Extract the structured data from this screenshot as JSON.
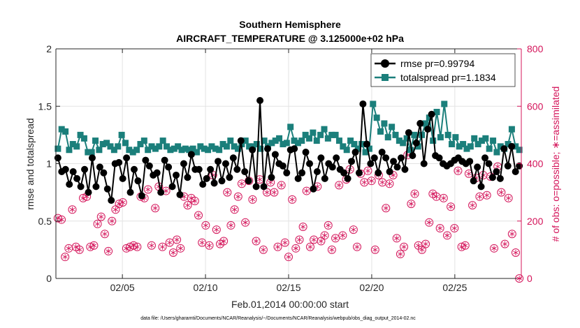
{
  "chart_data": {
    "type": "line",
    "title_line1": "Southern Hemisphere",
    "title_line2": "AIRCRAFT_TEMPERATURE @ 3.125000e+02 hPa",
    "xlabel": "Feb.01,2014 00:00:00 start",
    "ylabel_left": "rmse and totalspread",
    "ylabel_right": "# of obs: o=possible; ∗=assimilated",
    "xlim": [
      1,
      29
    ],
    "ylim_left": [
      0,
      2
    ],
    "ylim_right": [
      0,
      800
    ],
    "x_ticks": [
      5,
      10,
      15,
      20,
      25
    ],
    "x_tick_labels": [
      "02/05",
      "02/10",
      "02/15",
      "02/20",
      "02/25"
    ],
    "y_left_ticks": [
      0,
      0.5,
      1,
      1.5,
      2
    ],
    "y_left_tick_labels": [
      "0",
      "0.5",
      "1",
      "1.5",
      "2"
    ],
    "y_right_ticks": [
      0,
      200,
      400,
      600,
      800
    ],
    "y_right_tick_labels": [
      "0",
      "200",
      "400",
      "600",
      "800"
    ],
    "grid": true,
    "legend_position": "top-right",
    "colors": {
      "rmse": "#000000",
      "totalspread": "#1b7f7b",
      "obs": "#d4145a"
    },
    "series": [
      {
        "name": "rmse pr=0.99794",
        "values": [
          1.05,
          0.93,
          0.95,
          0.82,
          0.93,
          0.87,
          0.8,
          0.95,
          0.75,
          1.05,
          0.8,
          0.97,
          0.92,
          0.78,
          0.68,
          1.0,
          1.01,
          0.87,
          1.05,
          0.75,
          0.95,
          0.85,
          0.72,
          1.03,
          0.98,
          0.9,
          0.92,
          0.75,
          1.03,
          0.97,
          0.8,
          0.9,
          0.73,
          1.0,
          0.88,
          1.08,
          0.95,
          0.95,
          0.82,
          0.87,
          0.95,
          0.83,
          1.02,
          0.85,
          1.0,
          0.88,
          1.05,
          0.95,
          1.2,
          0.93,
          0.85,
          1.12,
          0.8,
          1.55,
          0.8,
          1.13,
          0.88,
          1.08,
          1.0,
          0.98,
          0.92,
          1.12,
          1.13,
          0.87,
          0.92,
          1.1,
          1.0,
          0.78,
          0.93,
          1.05,
          0.87,
          1.0,
          0.97,
          1.05,
          0.95,
          0.92,
          0.87,
          1.02,
          1.1,
          0.92,
          1.52,
          1.17,
          1.0,
          1.05,
          0.92,
          1.1,
          1.05,
          0.93,
          1.02,
          0.97,
          1.05,
          0.95,
          1.27,
          1.07,
          1.18,
          1.35,
          1.0,
          1.3,
          1.43,
          1.07,
          1.05,
          1.0,
          0.98,
          1.0,
          1.03,
          1.05,
          1.02,
          1.0,
          1.02,
          0.85,
          0.97,
          0.8,
          1.05,
          1.0,
          0.88,
          0.93,
          0.87,
          1.13,
          0.98,
          1.15,
          0.93,
          0.98
        ]
      },
      {
        "name": "totalspread pr=1.1834",
        "values": [
          1.13,
          1.3,
          1.28,
          1.12,
          1.17,
          1.15,
          1.25,
          1.22,
          1.1,
          1.1,
          1.2,
          1.12,
          1.17,
          1.18,
          1.15,
          1.12,
          1.15,
          1.25,
          1.18,
          1.12,
          1.1,
          1.12,
          1.17,
          1.2,
          1.12,
          1.15,
          1.13,
          1.15,
          1.2,
          1.15,
          1.12,
          1.13,
          1.15,
          1.12,
          1.13,
          1.12,
          1.13,
          1.1,
          1.15,
          1.13,
          1.12,
          1.15,
          1.13,
          1.12,
          1.17,
          1.15,
          1.2,
          1.15,
          1.13,
          1.17,
          1.2,
          1.15,
          1.15,
          1.17,
          1.13,
          1.2,
          1.15,
          1.18,
          1.2,
          1.22,
          1.17,
          1.18,
          1.32,
          1.2,
          1.18,
          1.2,
          1.25,
          1.22,
          1.27,
          1.2,
          1.25,
          1.3,
          1.22,
          1.25,
          1.25,
          1.2,
          1.15,
          1.12,
          1.2,
          1.17,
          1.13,
          1.17,
          1.1,
          1.13,
          1.52,
          1.4,
          1.28,
          1.35,
          1.23,
          1.32,
          1.25,
          1.2,
          1.18,
          1.22,
          1.12,
          1.25,
          1.15,
          1.25,
          1.35,
          1.4,
          1.2,
          1.45,
          1.23,
          1.52,
          1.25,
          1.17,
          1.23,
          1.15,
          1.17,
          1.13,
          1.15,
          1.22,
          1.17,
          1.2,
          1.22,
          1.13,
          1.2,
          1.1,
          1.15,
          1.13,
          1.17,
          1.3,
          1.15,
          1.12
        ]
      },
      {
        "name": "# of obs possible",
        "values": [
          210,
          205,
          75,
          105,
          240,
          110,
          100,
          280,
          285,
          110,
          115,
          190,
          215,
          155,
          95,
          200,
          240,
          260,
          265,
          105,
          110,
          115,
          110,
          285,
          280,
          310,
          115,
          245,
          320,
          110,
          305,
          125,
          90,
          135,
          105,
          285,
          255,
          280,
          270,
          220,
          125,
          185,
          115,
          360,
          170,
          120,
          130,
          300,
          185,
          240,
          285,
          330,
          195,
          340,
          275,
          130,
          345,
          100,
          300,
          335,
          300,
          110,
          325,
          125,
          75,
          275,
          105,
          135,
          180,
          305,
          110,
          135,
          320,
          130,
          150,
          185,
          100,
          140,
          325,
          150,
          345,
          380,
          170,
          110,
          365,
          335,
          375,
          340,
          100,
          360,
          335,
          245,
          330,
          360,
          140,
          85,
          110,
          430,
          260,
          295,
          115,
          100,
          120,
          195,
          295,
          285,
          175,
          280,
          150,
          250,
          175,
          375,
          110,
          115,
          365,
          255,
          350,
          285,
          360,
          290,
          355,
          105,
          390,
          300,
          120,
          280,
          155,
          90,
          0
        ]
      },
      {
        "name": "# of obs assimilated",
        "values": [
          210,
          205,
          75,
          105,
          240,
          110,
          100,
          280,
          285,
          110,
          115,
          190,
          215,
          155,
          95,
          200,
          240,
          260,
          265,
          105,
          110,
          115,
          110,
          285,
          280,
          310,
          115,
          245,
          320,
          110,
          305,
          125,
          90,
          135,
          105,
          285,
          255,
          280,
          270,
          220,
          125,
          185,
          115,
          360,
          170,
          120,
          130,
          300,
          185,
          240,
          285,
          330,
          195,
          340,
          275,
          130,
          345,
          100,
          300,
          335,
          300,
          110,
          325,
          125,
          75,
          275,
          105,
          135,
          180,
          305,
          110,
          135,
          320,
          130,
          150,
          185,
          100,
          140,
          325,
          150,
          345,
          380,
          170,
          110,
          365,
          335,
          375,
          340,
          100,
          360,
          335,
          245,
          330,
          360,
          140,
          85,
          110,
          430,
          260,
          295,
          115,
          100,
          120,
          195,
          295,
          285,
          175,
          280,
          150,
          250,
          175,
          375,
          110,
          115,
          365,
          255,
          350,
          285,
          360,
          290,
          355,
          105,
          390,
          300,
          120,
          280,
          155,
          90,
          0
        ]
      }
    ]
  },
  "footnote": "data file: /Users/gharamti/Documents/NCAR/Reanalysis/~/Documents/NCAR/Reanalysis/webpub/obs_diag_output_2014-02.nc"
}
